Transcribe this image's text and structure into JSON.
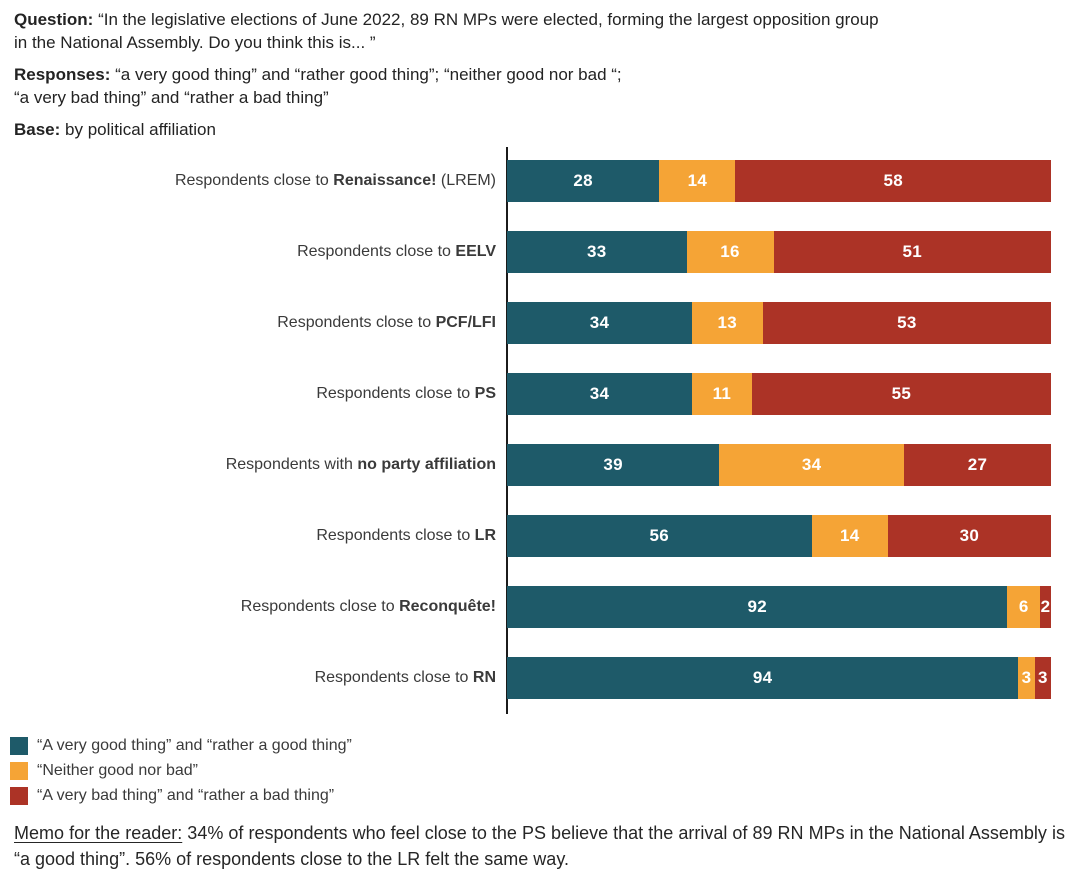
{
  "header": {
    "question_label": "Question:",
    "question_text": "“In the legislative elections of June 2022, 89 RN MPs were elected, forming the largest opposition group\nin the National Assembly. Do you think this is... ”",
    "responses_label": "Responses:",
    "responses_text": "“a very good thing” and “rather good thing”; “neither good nor bad “;\n“a very bad thing” and “rather a bad thing”",
    "base_label": "Base:",
    "base_text": "by political affiliation"
  },
  "chart_data": {
    "type": "bar",
    "orientation": "horizontal",
    "stacked": true,
    "x_range": [
      0,
      100
    ],
    "unit": "percent",
    "grid": false,
    "legend_position": "bottom-left",
    "categories": [
      {
        "prefix": "Respondents close to ",
        "bold": "Renaissance!",
        "suffix": " (LREM)"
      },
      {
        "prefix": "Respondents close to ",
        "bold": "EELV",
        "suffix": ""
      },
      {
        "prefix": "Respondents close to ",
        "bold": "PCF/LFI",
        "suffix": ""
      },
      {
        "prefix": "Respondents close to ",
        "bold": "PS",
        "suffix": ""
      },
      {
        "prefix": "Respondents with ",
        "bold": "no party affiliation",
        "suffix": ""
      },
      {
        "prefix": "Respondents close to ",
        "bold": "LR",
        "suffix": ""
      },
      {
        "prefix": "Respondents close to ",
        "bold": "Reconquête!",
        "suffix": ""
      },
      {
        "prefix": "Respondents close to ",
        "bold": "RN",
        "suffix": ""
      }
    ],
    "series": [
      {
        "key": "good",
        "name": "“A very good thing” and “rather a good thing”",
        "color": "#1E5A69",
        "values": [
          28,
          33,
          34,
          34,
          39,
          56,
          92,
          94
        ]
      },
      {
        "key": "neutral",
        "name": "“Neither good nor bad”",
        "color": "#F5A436",
        "values": [
          14,
          16,
          13,
          11,
          34,
          14,
          6,
          3
        ]
      },
      {
        "key": "bad",
        "name": "“A very bad thing” and “rather a bad thing”",
        "color": "#AC3326",
        "values": [
          58,
          51,
          53,
          55,
          27,
          30,
          2,
          3
        ]
      }
    ]
  },
  "memo": {
    "label": "Memo for the reader:",
    "text": " 34% of respondents who feel close to the PS believe that the arrival of 89 RN MPs in the National Assembly is “a good thing”. 56% of respondents close to the LR felt the same way."
  }
}
